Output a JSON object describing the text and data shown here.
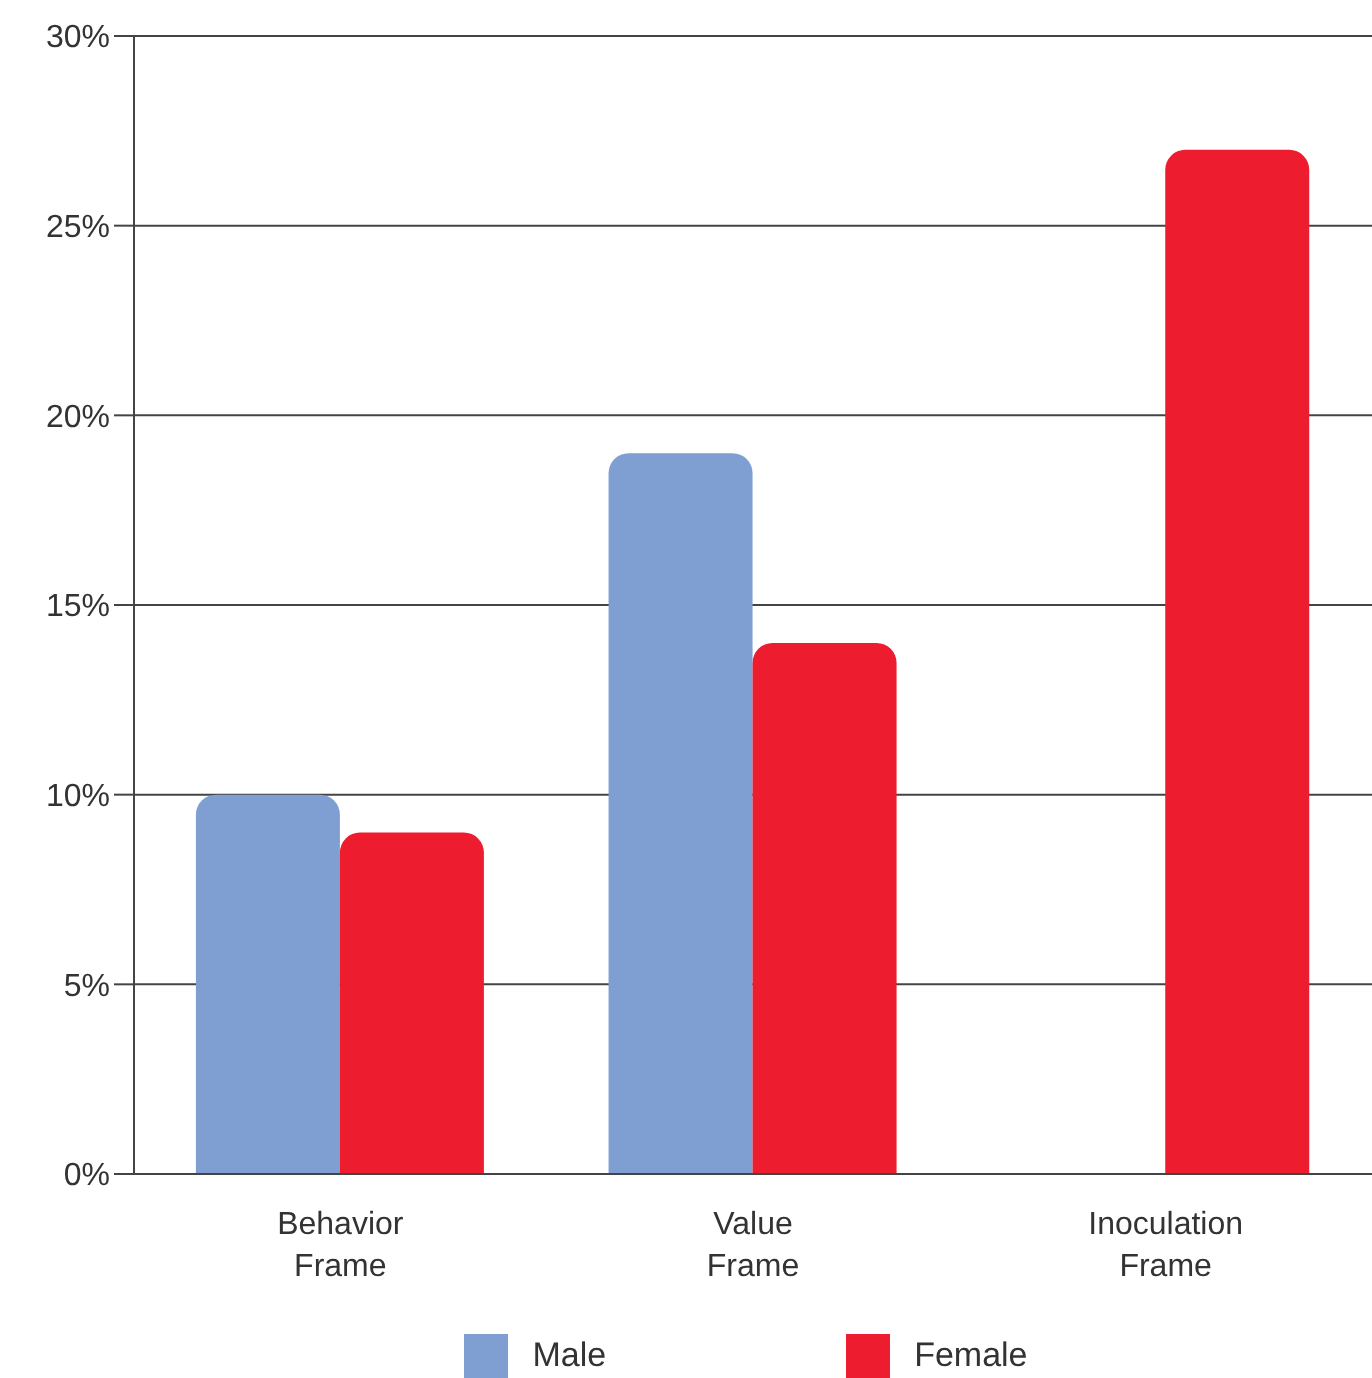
{
  "chart_data": {
    "type": "bar",
    "categories": [
      "Behavior Frame",
      "Value Frame",
      "Inoculation Frame"
    ],
    "series": [
      {
        "name": "Male",
        "color": "#7f9fd3",
        "values": [
          10,
          19,
          null
        ]
      },
      {
        "name": "Female",
        "color": "#ed1c2e",
        "values": [
          9,
          14,
          27
        ]
      }
    ],
    "ylim": [
      0,
      30
    ],
    "yticks": [
      {
        "value": 0,
        "label": "0%"
      },
      {
        "value": 5,
        "label": "5%"
      },
      {
        "value": 10,
        "label": "10%"
      },
      {
        "value": 15,
        "label": "15%"
      },
      {
        "value": 20,
        "label": "20%"
      },
      {
        "value": 25,
        "label": "25%"
      },
      {
        "value": 30,
        "label": "30%"
      }
    ],
    "grid": "y",
    "legend": "bottom"
  }
}
